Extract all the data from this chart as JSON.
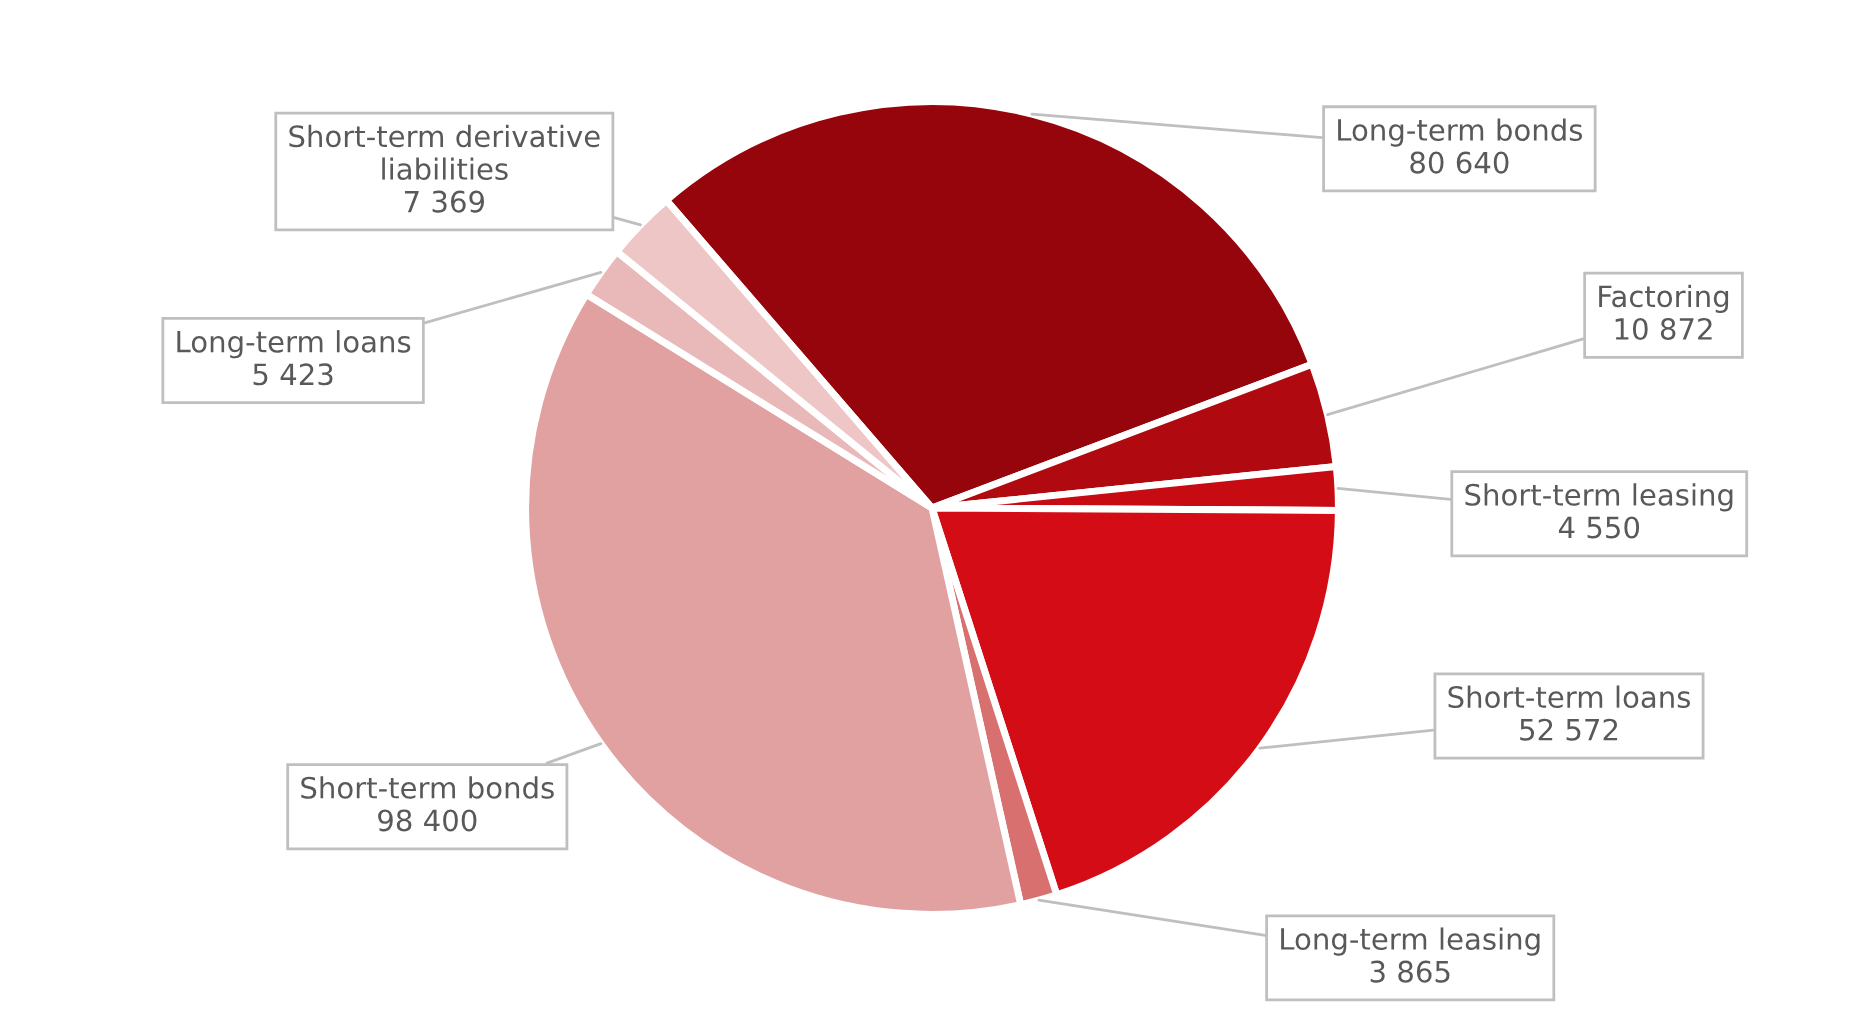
{
  "chart_data": {
    "type": "pie",
    "categories": [
      "Long-term bonds",
      "Factoring",
      "Short-term leasing",
      "Short-term loans",
      "Long-term leasing",
      "Short-term bonds",
      "Long-term loans",
      "Short-term derivative\nliabilities"
    ],
    "values": [
      80640,
      10872,
      4550,
      52572,
      3865,
      98400,
      5423,
      7369
    ],
    "colors": [
      "#97050c",
      "#b10910",
      "#c60b13",
      "#d30c15",
      "#d87070",
      "#e1a1a1",
      "#e9b9b9",
      "#efc6c6"
    ],
    "data_labels": true,
    "legend": false
  }
}
